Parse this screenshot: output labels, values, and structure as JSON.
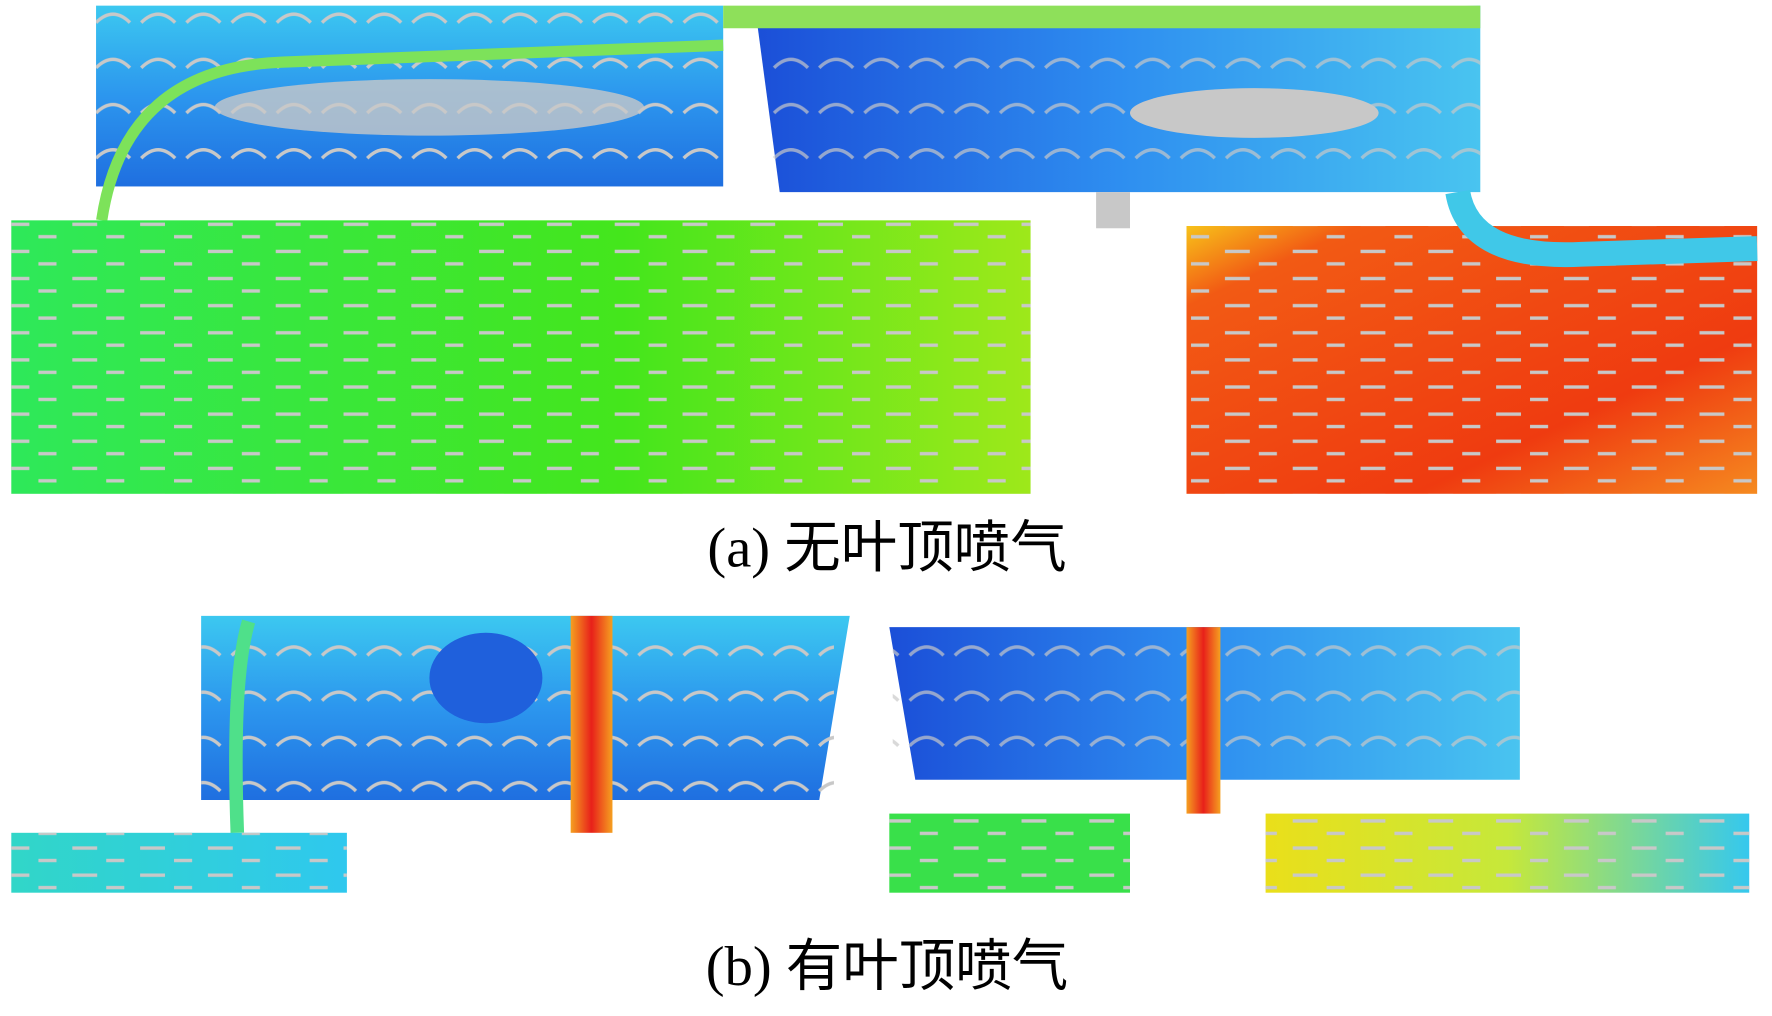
{
  "captions": [
    "(a) 无叶顶喷气",
    "(b) 有叶顶喷气"
  ]
}
